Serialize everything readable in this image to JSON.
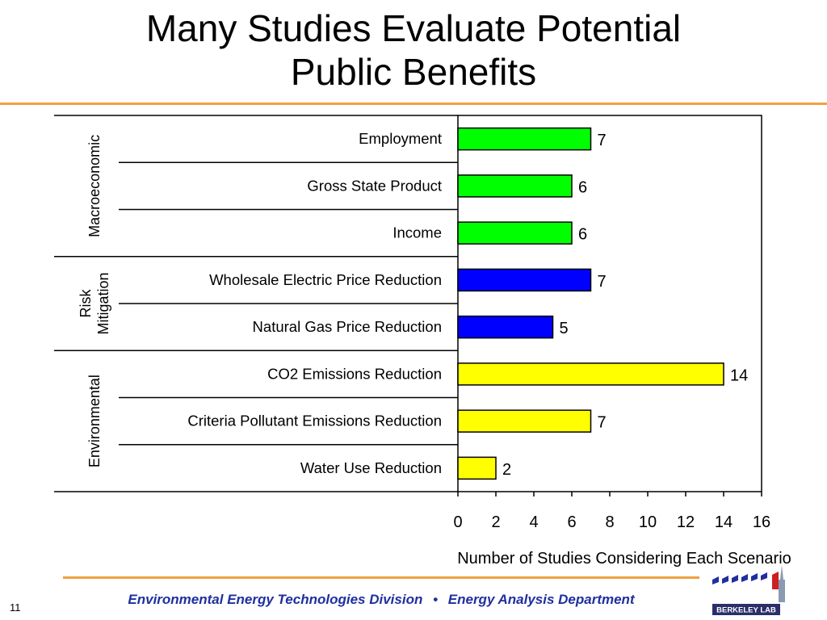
{
  "slide": {
    "title_line1": "Many Studies Evaluate Potential",
    "title_line2": "Public Benefits",
    "page_number": "11"
  },
  "footer": {
    "division": "Environmental Energy Technologies Division",
    "separator": "•",
    "department": "Energy Analysis Department"
  },
  "logo": {
    "text": "BERKELEY LAB"
  },
  "colors": {
    "accent_rule": "#f0a040",
    "footer_text": "#1f2fa0",
    "macroeconomic": "#00ff00",
    "risk_mitigation": "#0000ff",
    "environmental": "#ffff00"
  },
  "chart_data": {
    "type": "bar",
    "orientation": "horizontal",
    "categories": [
      "Employment",
      "Gross State Product",
      "Income",
      "Wholesale Electric Price Reduction",
      "Natural Gas Price Reduction",
      "CO2 Emissions Reduction",
      "Criteria Pollutant Emissions Reduction",
      "Water Use Reduction"
    ],
    "values": [
      7,
      6,
      6,
      7,
      5,
      14,
      7,
      2
    ],
    "bar_groups": [
      "macroeconomic",
      "macroeconomic",
      "macroeconomic",
      "risk_mitigation",
      "risk_mitigation",
      "environmental",
      "environmental",
      "environmental"
    ],
    "groups": [
      {
        "id": "macroeconomic",
        "label_lines": [
          "Macroeconomic"
        ],
        "count": 3
      },
      {
        "id": "risk_mitigation",
        "label_lines": [
          "Risk",
          "Mitigation"
        ],
        "count": 2
      },
      {
        "id": "environmental",
        "label_lines": [
          "Environmental"
        ],
        "count": 3
      }
    ],
    "xlabel": "Number of Studies Considering Each Scenario",
    "xlim": [
      0,
      16
    ],
    "xticks": [
      0,
      2,
      4,
      6,
      8,
      10,
      12,
      14,
      16
    ],
    "data_labels": true,
    "grid": false
  }
}
